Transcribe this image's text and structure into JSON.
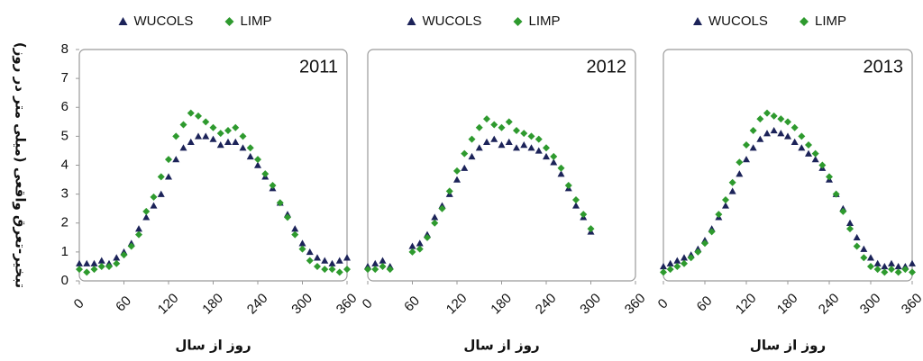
{
  "chart_data": [
    {
      "type": "scatter",
      "title": "2011",
      "x_label": "روز از سال",
      "y_label": "تبخیر-تعرق واقعی (میلی متر در روز)",
      "x": [
        0,
        10,
        20,
        30,
        40,
        50,
        60,
        70,
        80,
        90,
        100,
        110,
        120,
        130,
        140,
        150,
        160,
        170,
        180,
        190,
        200,
        210,
        220,
        230,
        240,
        250,
        260,
        270,
        280,
        290,
        300,
        310,
        320,
        330,
        340,
        350,
        360
      ],
      "series": [
        {
          "name": "WUCOLS",
          "color": "#1c2359",
          "values": [
            0.6,
            0.6,
            0.6,
            0.7,
            0.6,
            0.8,
            1.0,
            1.3,
            1.8,
            2.2,
            2.6,
            3.0,
            3.6,
            4.2,
            4.6,
            4.8,
            5.0,
            5.0,
            4.9,
            4.7,
            4.8,
            4.8,
            4.6,
            4.3,
            4.0,
            3.6,
            3.2,
            2.7,
            2.3,
            1.8,
            1.3,
            1.0,
            0.8,
            0.7,
            0.6,
            0.7,
            0.8
          ]
        },
        {
          "name": "LIMP",
          "color": "#2e9a2e",
          "values": [
            0.4,
            0.3,
            0.4,
            0.5,
            0.5,
            0.6,
            0.9,
            1.2,
            1.6,
            2.4,
            2.9,
            3.6,
            4.2,
            5.0,
            5.4,
            5.8,
            5.7,
            5.5,
            5.3,
            5.1,
            5.2,
            5.3,
            5.0,
            4.6,
            4.2,
            3.7,
            3.3,
            2.7,
            2.2,
            1.6,
            1.1,
            0.7,
            0.5,
            0.4,
            0.4,
            0.3,
            0.4
          ]
        }
      ],
      "xlim": [
        0,
        360
      ],
      "xticks": [
        0,
        60,
        120,
        180,
        240,
        300,
        360
      ],
      "ylim": [
        0,
        8
      ],
      "yticks": [
        0,
        1,
        2,
        3,
        4,
        5,
        6,
        7,
        8
      ]
    },
    {
      "type": "scatter",
      "title": "2012",
      "x_label": "روز از سال",
      "x": [
        0,
        10,
        20,
        30,
        60,
        70,
        80,
        90,
        100,
        110,
        120,
        130,
        140,
        150,
        160,
        170,
        180,
        190,
        200,
        210,
        220,
        230,
        240,
        250,
        260,
        270,
        280,
        290,
        300
      ],
      "series": [
        {
          "name": "WUCOLS",
          "color": "#1c2359",
          "values": [
            0.5,
            0.6,
            0.7,
            0.5,
            1.2,
            1.3,
            1.6,
            2.2,
            2.6,
            3.0,
            3.5,
            3.9,
            4.3,
            4.6,
            4.8,
            4.9,
            4.7,
            4.8,
            4.6,
            4.7,
            4.6,
            4.5,
            4.3,
            4.1,
            3.7,
            3.2,
            2.6,
            2.2,
            1.7
          ]
        },
        {
          "name": "LIMP",
          "color": "#2e9a2e",
          "values": [
            0.4,
            0.4,
            0.5,
            0.4,
            1.0,
            1.1,
            1.5,
            2.0,
            2.5,
            3.1,
            3.8,
            4.4,
            4.9,
            5.3,
            5.6,
            5.4,
            5.3,
            5.5,
            5.2,
            5.1,
            5.0,
            4.9,
            4.6,
            4.3,
            3.9,
            3.3,
            2.8,
            2.3,
            1.8
          ]
        }
      ],
      "xlim": [
        0,
        360
      ],
      "xticks": [
        0,
        60,
        120,
        180,
        240,
        300,
        360
      ],
      "ylim": [
        0,
        8
      ]
    },
    {
      "type": "scatter",
      "title": "2013",
      "x_label": "روز از سال",
      "x": [
        0,
        10,
        20,
        30,
        40,
        50,
        60,
        70,
        80,
        90,
        100,
        110,
        120,
        130,
        140,
        150,
        160,
        170,
        180,
        190,
        200,
        210,
        220,
        230,
        240,
        250,
        260,
        270,
        280,
        290,
        300,
        310,
        320,
        330,
        340,
        350,
        360
      ],
      "series": [
        {
          "name": "WUCOLS",
          "color": "#1c2359",
          "values": [
            0.5,
            0.6,
            0.7,
            0.8,
            0.9,
            1.1,
            1.4,
            1.8,
            2.2,
            2.6,
            3.1,
            3.7,
            4.2,
            4.6,
            4.9,
            5.1,
            5.2,
            5.1,
            5.0,
            4.8,
            4.6,
            4.4,
            4.2,
            3.9,
            3.5,
            3.0,
            2.5,
            2.0,
            1.5,
            1.1,
            0.8,
            0.6,
            0.5,
            0.6,
            0.5,
            0.5,
            0.6
          ]
        },
        {
          "name": "LIMP",
          "color": "#2e9a2e",
          "values": [
            0.3,
            0.4,
            0.5,
            0.6,
            0.8,
            1.0,
            1.3,
            1.7,
            2.3,
            2.8,
            3.4,
            4.1,
            4.7,
            5.2,
            5.6,
            5.8,
            5.7,
            5.6,
            5.5,
            5.3,
            5.0,
            4.7,
            4.4,
            4.0,
            3.6,
            3.0,
            2.4,
            1.8,
            1.2,
            0.8,
            0.5,
            0.4,
            0.3,
            0.4,
            0.3,
            0.4,
            0.3
          ]
        }
      ],
      "xlim": [
        0,
        360
      ],
      "xticks": [
        0,
        60,
        120,
        180,
        240,
        300,
        360
      ],
      "ylim": [
        0,
        8
      ]
    }
  ]
}
